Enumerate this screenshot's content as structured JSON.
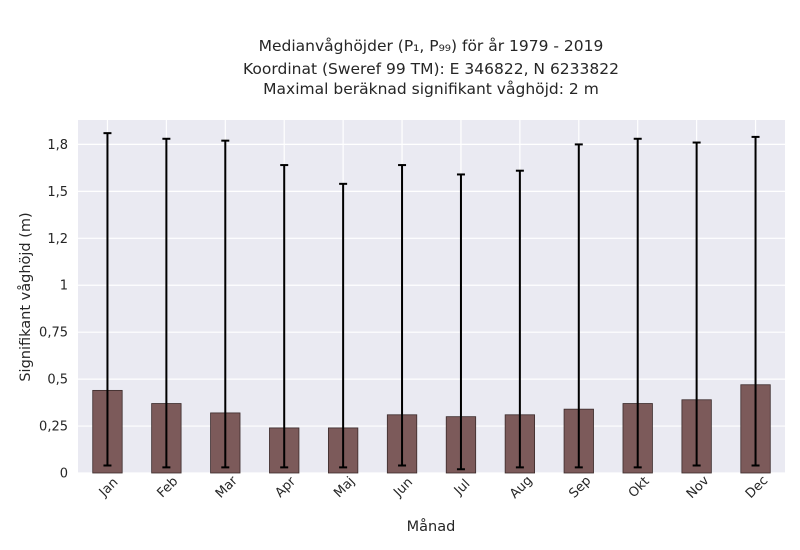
{
  "chart_data": {
    "type": "bar",
    "title_lines": [
      "Medianvåghöjder (P₁, P₉₉) för år 1979 - 2019",
      "Koordinat (Sweref 99 TM): E 346822, N 6233822",
      "Maximal beräknad signifikant våghöjd: 2 m"
    ],
    "xlabel": "Månad",
    "ylabel": "Signifikant våghöjd (m)",
    "categories": [
      "Jan",
      "Feb",
      "Mar",
      "Apr",
      "Maj",
      "Jun",
      "Jul",
      "Aug",
      "Sep",
      "Okt",
      "Nov",
      "Dec"
    ],
    "series": [
      {
        "values": [
          0.44,
          0.37,
          0.32,
          0.24,
          0.24,
          0.31,
          0.3,
          0.31,
          0.34,
          0.37,
          0.39,
          0.47
        ],
        "p1": [
          0.04,
          0.03,
          0.03,
          0.03,
          0.03,
          0.04,
          0.02,
          0.03,
          0.03,
          0.03,
          0.04,
          0.04
        ],
        "p99": [
          1.81,
          1.78,
          1.77,
          1.64,
          1.54,
          1.64,
          1.59,
          1.61,
          1.75,
          1.78,
          1.76,
          1.79
        ]
      }
    ],
    "ylim": [
      0,
      1.88
    ],
    "yticks": [
      {
        "value": 0,
        "label": "0"
      },
      {
        "value": 0.25,
        "label": "0,25"
      },
      {
        "value": 0.5,
        "label": "0,5"
      },
      {
        "value": 0.75,
        "label": "0,75"
      },
      {
        "value": 1.0,
        "label": "1"
      },
      {
        "value": 1.25,
        "label": "1,2"
      },
      {
        "value": 1.5,
        "label": "1,5"
      },
      {
        "value": 1.75,
        "label": "1,8"
      }
    ],
    "grid": true,
    "colors": {
      "bar": "#7c5a5a",
      "bar_edge": "#3a2a2a",
      "error": "#000000",
      "plot_bg": "#eaeaf2",
      "grid": "#ffffff"
    }
  }
}
